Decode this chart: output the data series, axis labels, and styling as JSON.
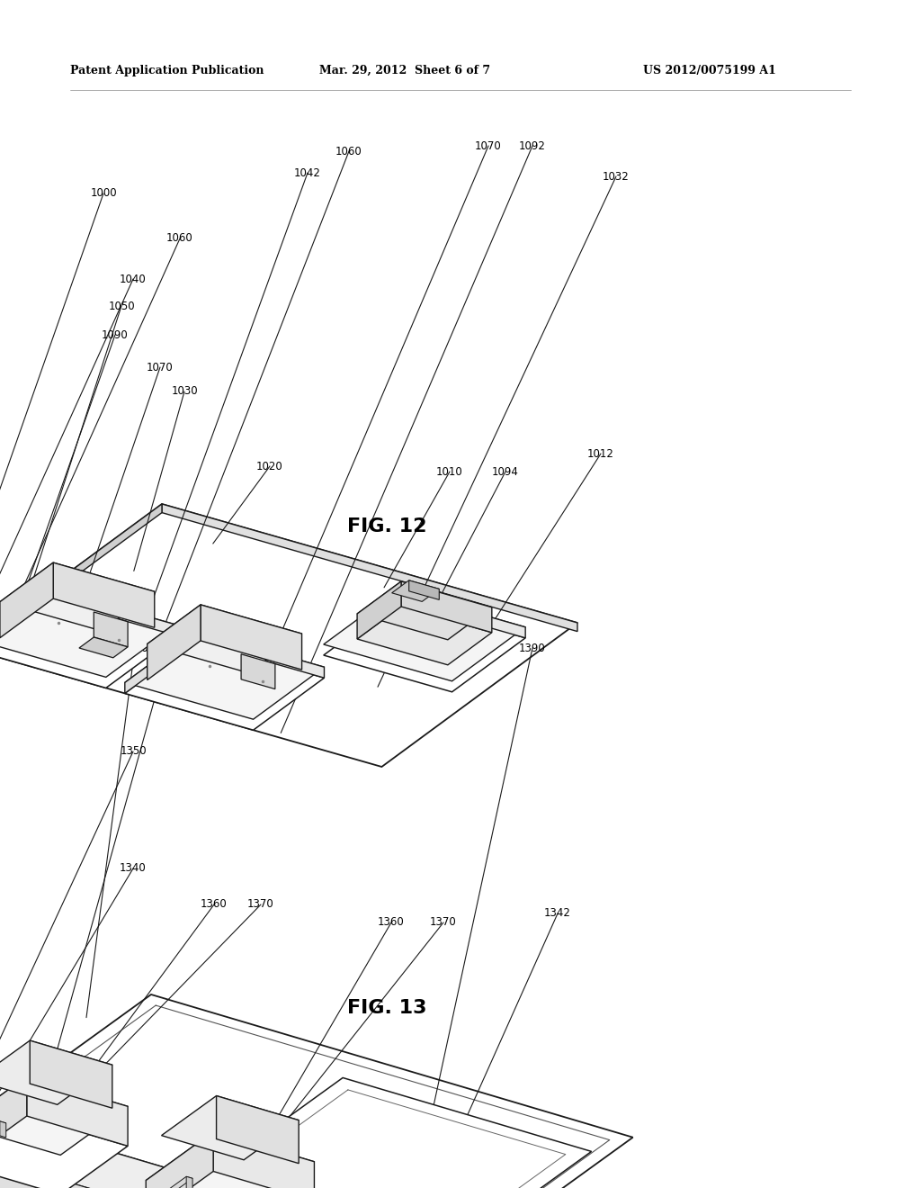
{
  "background_color": "#ffffff",
  "header_left": "Patent Application Publication",
  "header_center": "Mar. 29, 2012  Sheet 6 of 7",
  "header_right": "US 2012/0075199 A1",
  "fig12_label": "FIG. 12",
  "fig13_label": "FIG. 13",
  "line_color": "#1a1a1a",
  "line_width": 1.1
}
